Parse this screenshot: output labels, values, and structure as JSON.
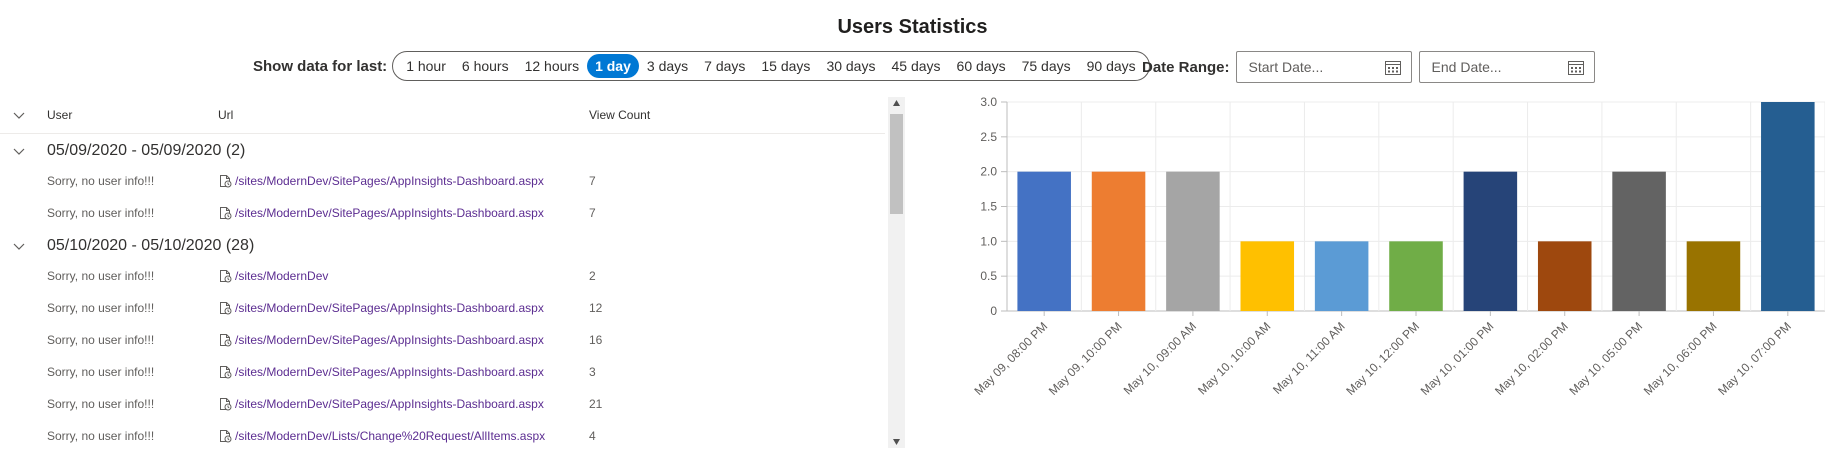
{
  "title": "Users Statistics",
  "filter": {
    "label": "Show data for last:",
    "options": [
      "1 hour",
      "6 hours",
      "12 hours",
      "1 day",
      "3 days",
      "7 days",
      "15 days",
      "30 days",
      "45 days",
      "60 days",
      "75 days",
      "90 days"
    ],
    "selected": "1 day"
  },
  "date_range": {
    "label": "Date Range:",
    "start_placeholder": "Start Date...",
    "end_placeholder": "End Date..."
  },
  "table": {
    "columns": [
      "User",
      "Url",
      "View Count"
    ],
    "groups": [
      {
        "title": "05/09/2020 - 05/09/2020 (2)",
        "rows": [
          {
            "user": "Sorry, no user info!!!",
            "url": "/sites/ModernDev/SitePages/AppInsights-Dashboard.aspx",
            "count": "7"
          },
          {
            "user": "Sorry, no user info!!!",
            "url": "/sites/ModernDev/SitePages/AppInsights-Dashboard.aspx",
            "count": "7"
          }
        ]
      },
      {
        "title": "05/10/2020 - 05/10/2020 (28)",
        "rows": [
          {
            "user": "Sorry, no user info!!!",
            "url": "/sites/ModernDev",
            "count": "2"
          },
          {
            "user": "Sorry, no user info!!!",
            "url": "/sites/ModernDev/SitePages/AppInsights-Dashboard.aspx",
            "count": "12"
          },
          {
            "user": "Sorry, no user info!!!",
            "url": "/sites/ModernDev/SitePages/AppInsights-Dashboard.aspx",
            "count": "16"
          },
          {
            "user": "Sorry, no user info!!!",
            "url": "/sites/ModernDev/SitePages/AppInsights-Dashboard.aspx",
            "count": "3"
          },
          {
            "user": "Sorry, no user info!!!",
            "url": "/sites/ModernDev/SitePages/AppInsights-Dashboard.aspx",
            "count": "21"
          },
          {
            "user": "Sorry, no user info!!!",
            "url": "/sites/ModernDev/Lists/Change%20Request/AllItems.aspx",
            "count": "4"
          }
        ]
      }
    ]
  },
  "colors": {
    "accent": "#0078d4",
    "link": "#5c2d91"
  },
  "chart_data": {
    "type": "bar",
    "title": "",
    "xlabel": "",
    "ylabel": "",
    "ylim": [
      0,
      3.0
    ],
    "yticks": [
      "0",
      "0.5",
      "1.0",
      "1.5",
      "2.0",
      "2.5",
      "3.0"
    ],
    "grid": true,
    "categories": [
      "May 09, 08:00 PM",
      "May 09, 10:00 PM",
      "May 10, 09:00 AM",
      "May 10, 10:00 AM",
      "May 10, 11:00 AM",
      "May 10, 12:00 PM",
      "May 10, 01:00 PM",
      "May 10, 02:00 PM",
      "May 10, 05:00 PM",
      "May 10, 06:00 PM",
      "May 10, 07:00 PM"
    ],
    "values": [
      2,
      2,
      2,
      1,
      1,
      1,
      2,
      1,
      2,
      1,
      3
    ],
    "bar_colors": [
      "#4472c4",
      "#ed7d31",
      "#a5a5a5",
      "#ffc000",
      "#5b9bd5",
      "#70ad47",
      "#264478",
      "#9e480e",
      "#636363",
      "#997300",
      "#255e91"
    ]
  }
}
